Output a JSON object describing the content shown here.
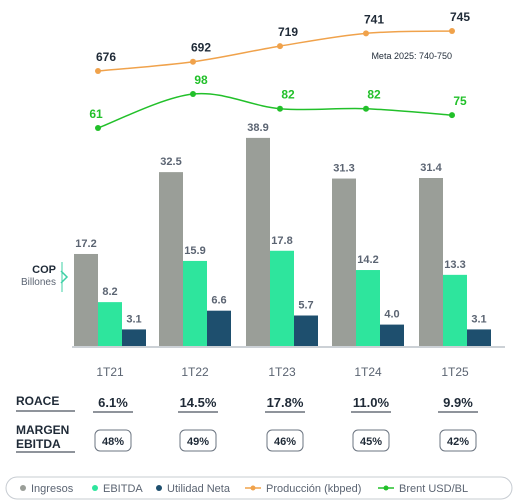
{
  "chart_data": {
    "type": "bar",
    "unit_label": [
      "COP",
      "Billones"
    ],
    "categories": [
      "1T21",
      "1T22",
      "1T23",
      "1T24",
      "1T25"
    ],
    "series": [
      {
        "name": "Ingresos",
        "values": [
          17.2,
          32.5,
          38.9,
          31.3,
          31.4
        ],
        "labels": [
          "17.2",
          "32.5",
          "38.9",
          "31.3",
          "31.4"
        ],
        "color": "#9a9e98"
      },
      {
        "name": "EBITDA",
        "values": [
          8.2,
          15.9,
          17.8,
          14.2,
          13.3
        ],
        "labels": [
          "8.2",
          "15.9",
          "17.8",
          "14.2",
          "13.3"
        ],
        "color": "#2ee59d"
      },
      {
        "name": "Utilidad Neta",
        "values": [
          3.1,
          6.6,
          5.7,
          4.0,
          3.1
        ],
        "labels": [
          "3.1",
          "6.6",
          "5.7",
          "4.0",
          "3.1"
        ],
        "color": "#1e4f6e"
      }
    ],
    "lines": [
      {
        "name": "Producción (kbped)",
        "values": [
          676,
          692,
          719,
          741,
          745
        ],
        "labels": [
          "676",
          "692",
          "719",
          "741",
          "745"
        ],
        "color": "#f0a24b"
      },
      {
        "name": "Brent USD/BL",
        "values": [
          61,
          98,
          82,
          82,
          75
        ],
        "labels": [
          "61",
          "98",
          "82",
          "82",
          "75"
        ],
        "color": "#22c02a"
      }
    ],
    "annotation": "Meta 2025: 740-750",
    "roace": {
      "label": "ROACE",
      "values": [
        "6.1%",
        "14.5%",
        "17.8%",
        "11.0%",
        "9.9%"
      ]
    },
    "margin": {
      "label": [
        "MARGEN",
        "EBITDA"
      ],
      "values": [
        "48%",
        "49%",
        "46%",
        "45%",
        "42%"
      ]
    },
    "legend": [
      {
        "name": "Ingresos",
        "marker": "dot",
        "color": "#9a9e98"
      },
      {
        "name": "EBITDA",
        "marker": "dot",
        "color": "#2ee59d"
      },
      {
        "name": "Utilidad Neta",
        "marker": "dot",
        "color": "#1e4f6e"
      },
      {
        "name": "Producción (kbped)",
        "marker": "line",
        "color": "#f0a24b"
      },
      {
        "name": "Brent USD/BL",
        "marker": "line",
        "color": "#22c02a"
      }
    ],
    "colors": {
      "text_dark": "#1f2a37",
      "text_mid": "#5b6472",
      "axis": "#9aa3ad",
      "accent_teal": "#3fd0a6"
    }
  }
}
